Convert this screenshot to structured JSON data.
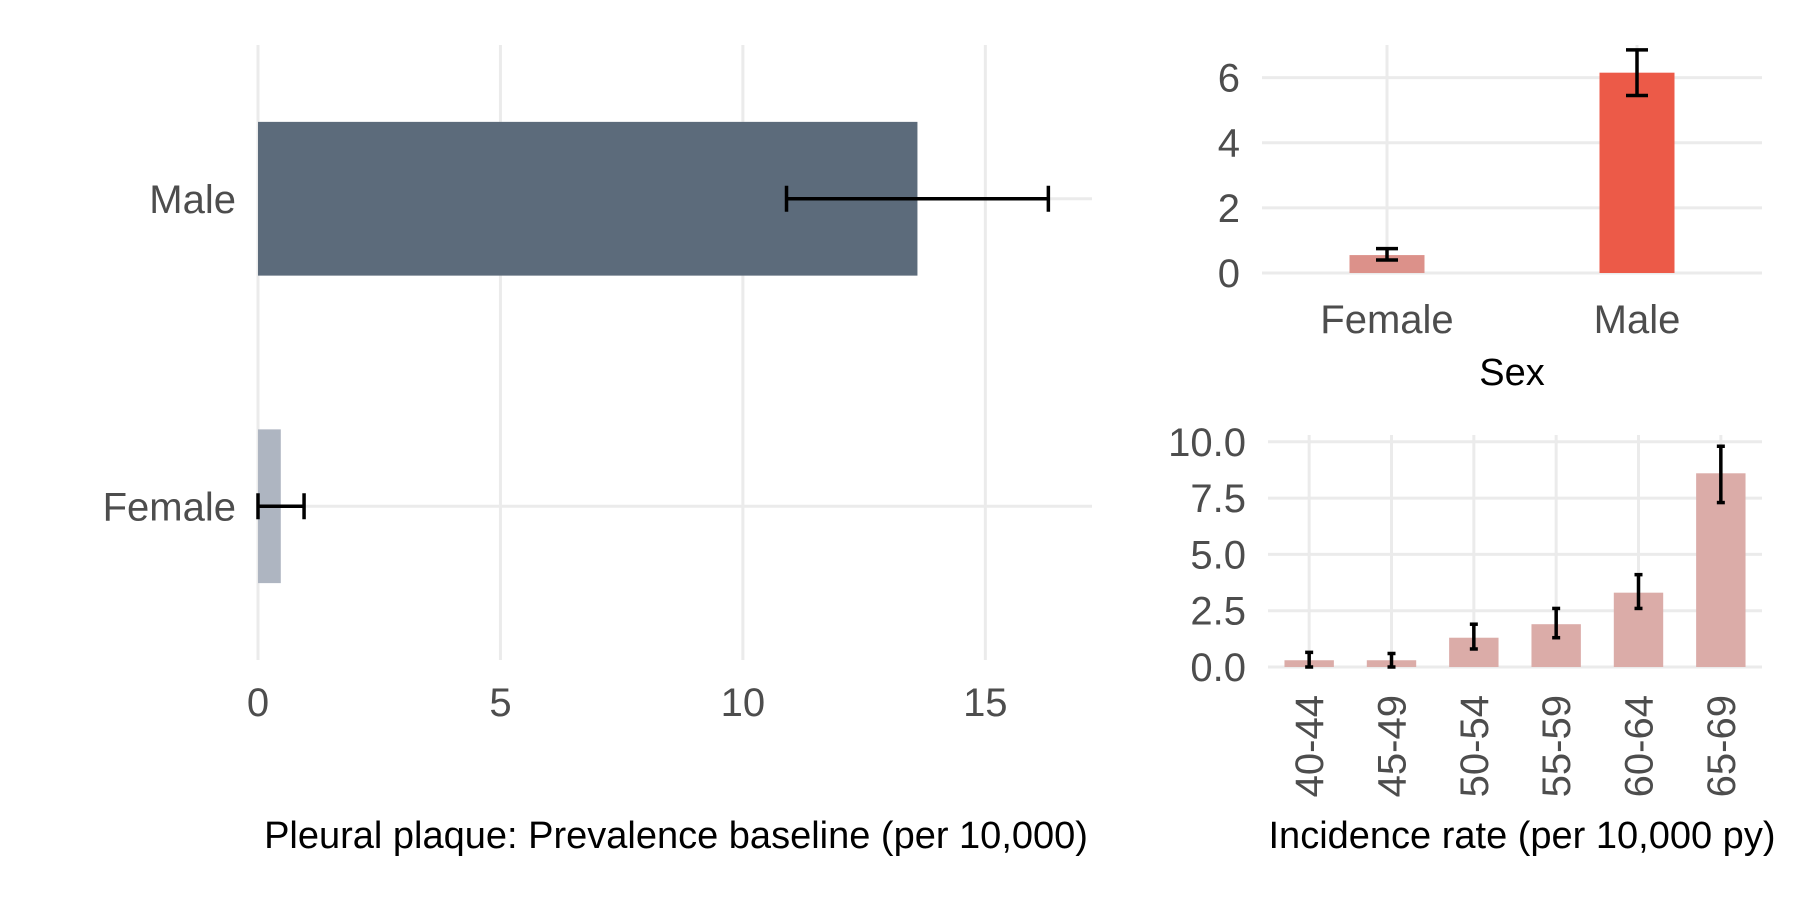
{
  "chart_data": [
    {
      "type": "bar",
      "orientation": "horizontal",
      "categories": [
        "Female",
        "Male"
      ],
      "values": [
        0.47,
        13.6
      ],
      "error_low": [
        0.0,
        10.9
      ],
      "error_high": [
        0.95,
        16.3
      ],
      "colors": [
        "#aeb5c1",
        "#5c6b7b"
      ],
      "xlabel": "Pleural plaque: Prevalence baseline (per 10,000)",
      "ylabel": "",
      "xlim": [
        0,
        17.2
      ],
      "xticks": [
        0,
        5,
        10,
        15
      ],
      "xtick_labels": [
        "0",
        "5",
        "10",
        "15"
      ],
      "grid": true
    },
    {
      "type": "bar",
      "orientation": "vertical",
      "categories": [
        "Female",
        "Male"
      ],
      "values": [
        0.55,
        6.15
      ],
      "error_low": [
        0.4,
        5.45
      ],
      "error_high": [
        0.75,
        6.85
      ],
      "colors": [
        "#dc918a",
        "#ec5a48"
      ],
      "xlabel": "Sex",
      "ylabel": "",
      "ylim": [
        0,
        7.0
      ],
      "yticks": [
        0,
        2,
        4,
        6
      ],
      "ytick_labels": [
        "0",
        "2",
        "4",
        "6"
      ],
      "grid": true
    },
    {
      "type": "bar",
      "orientation": "vertical",
      "categories": [
        "40-44",
        "45-49",
        "50-54",
        "55-59",
        "60-64",
        "65-69"
      ],
      "values": [
        0.3,
        0.3,
        1.3,
        1.9,
        3.3,
        8.6
      ],
      "error_low": [
        0.0,
        0.0,
        0.8,
        1.3,
        2.6,
        7.3
      ],
      "error_high": [
        0.65,
        0.6,
        1.9,
        2.6,
        4.1,
        9.8
      ],
      "colors": [
        "#dbaca8"
      ],
      "xlabel": "Incidence rate (per 10,000 py)",
      "ylabel": "",
      "ylim": [
        0,
        10.3
      ],
      "yticks": [
        0,
        2.5,
        5,
        7.5,
        10
      ],
      "ytick_labels": [
        "0.0",
        "2.5",
        "5.0",
        "7.5",
        "10.0"
      ],
      "tick_label_rotation": "vertical",
      "grid": true
    }
  ]
}
